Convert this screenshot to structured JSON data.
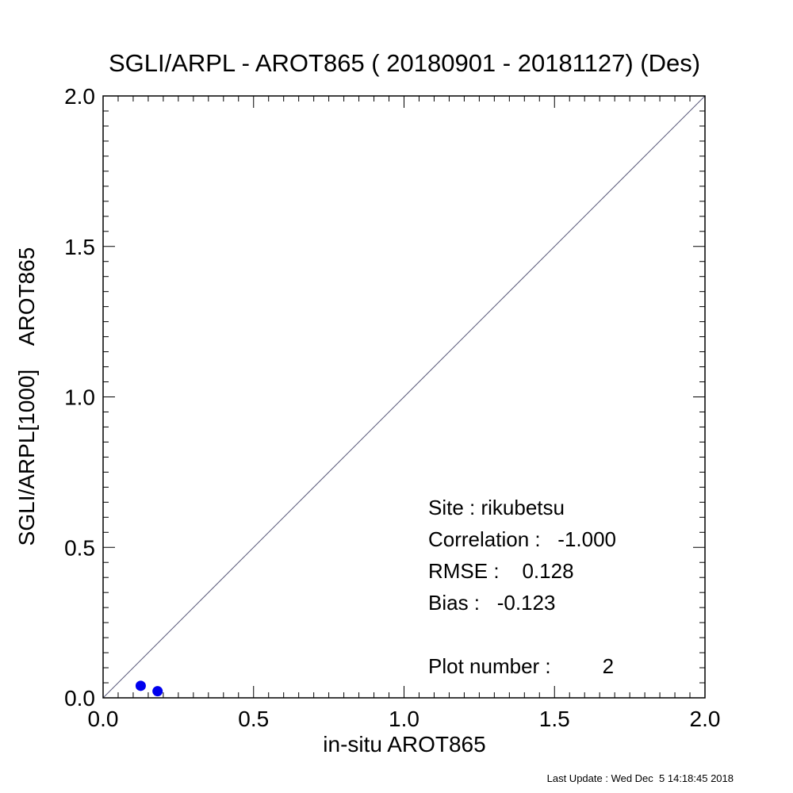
{
  "chart_data": {
    "type": "scatter",
    "title": "SGLI/ARPL - AROT865 ( 20180901 - 20181127) (Des)",
    "xlabel": "in-situ AROT865",
    "ylabel": "SGLI/ARPL[1000]    AROT865",
    "xlim": [
      0.0,
      2.0
    ],
    "ylim": [
      0.0,
      2.0
    ],
    "xticks": [
      "0.0",
      "0.5",
      "1.0",
      "1.5",
      "2.0"
    ],
    "yticks": [
      "0.0",
      "0.5",
      "1.0",
      "1.5",
      "2.0"
    ],
    "grid": false,
    "reference_line": "1:1",
    "point_color": "#0000ee",
    "line_color": "#5a5a7a",
    "series": [
      {
        "x": [
          0.125,
          0.181
        ],
        "y": [
          0.04,
          0.022
        ]
      }
    ],
    "stats": {
      "site": "Site : rikubetsu",
      "correlation": "Correlation :   -1.000",
      "rmse": "RMSE :    0.128",
      "bias": "Bias :   -0.123",
      "plot_number": "Plot number :         2"
    }
  },
  "footer": {
    "last_update": "Last Update : Wed Dec  5 14:18:45 2018"
  }
}
